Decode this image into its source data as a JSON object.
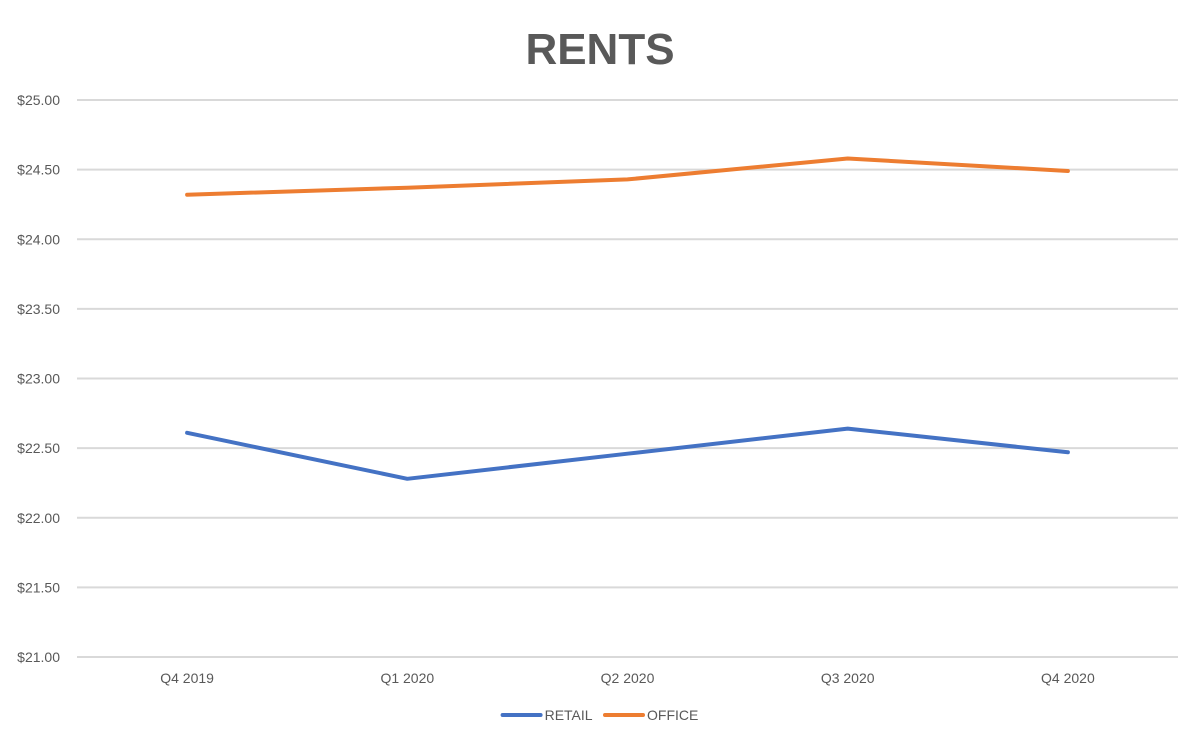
{
  "chart_data": {
    "type": "line",
    "title": "RENTS",
    "xlabel": "",
    "ylabel": "",
    "categories": [
      "Q4 2019",
      "Q1 2020",
      "Q2 2020",
      "Q3 2020",
      "Q4 2020"
    ],
    "ylim": [
      21.0,
      25.0
    ],
    "y_ticks": [
      21.0,
      21.5,
      22.0,
      22.5,
      23.0,
      23.5,
      24.0,
      24.5,
      25.0
    ],
    "y_tick_labels": [
      "$21.00",
      "$21.50",
      "$22.00",
      "$22.50",
      "$23.00",
      "$23.50",
      "$24.00",
      "$24.50",
      "$25.00"
    ],
    "grid": true,
    "legend_position": "bottom",
    "series": [
      {
        "name": "RETAIL",
        "color": "#4472c4",
        "values": [
          22.61,
          22.28,
          22.46,
          22.64,
          22.47
        ]
      },
      {
        "name": "OFFICE",
        "color": "#ed7d31",
        "values": [
          24.32,
          24.37,
          24.43,
          24.58,
          24.49
        ]
      }
    ]
  }
}
